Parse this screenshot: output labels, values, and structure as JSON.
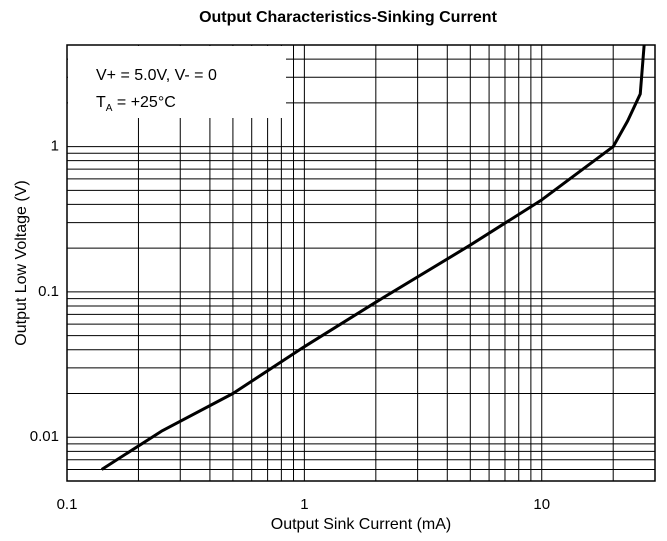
{
  "chart_data": {
    "type": "line",
    "title": "Output Characteristics-Sinking Current",
    "x_label": "Output Sink Current (mA)",
    "y_label": "Output Low Voltage (V)",
    "annotations": [
      {
        "text": "V+ = 5.0V, V- = 0"
      },
      {
        "text": "T",
        "sub": "A",
        "rest": " = +25°C"
      }
    ],
    "log_x": true,
    "log_y": true,
    "grid": true,
    "xlim": [
      0.1,
      30
    ],
    "ylim": [
      0.005,
      5
    ],
    "xticks": [
      0.1,
      1,
      10
    ],
    "yticks": [
      0.01,
      0.1,
      1
    ],
    "x_minor_ticks": [
      0.2,
      0.3,
      0.4,
      0.5,
      0.6,
      0.7,
      0.8,
      0.9,
      2,
      3,
      4,
      5,
      6,
      7,
      8,
      9,
      20
    ],
    "y_minor_ticks": [
      0.006,
      0.007,
      0.008,
      0.009,
      0.02,
      0.03,
      0.04,
      0.05,
      0.06,
      0.07,
      0.08,
      0.09,
      0.2,
      0.3,
      0.4,
      0.5,
      0.6,
      0.7,
      0.8,
      0.9,
      2,
      3,
      4
    ],
    "series": [
      {
        "color": "#000000",
        "x": [
          0.14,
          0.25,
          0.5,
          1,
          2,
          5,
          10,
          20,
          23,
          26,
          27
        ],
        "values": [
          0.006,
          0.011,
          0.02,
          0.042,
          0.085,
          0.21,
          0.43,
          1.0,
          1.5,
          2.3,
          5
        ]
      }
    ]
  }
}
